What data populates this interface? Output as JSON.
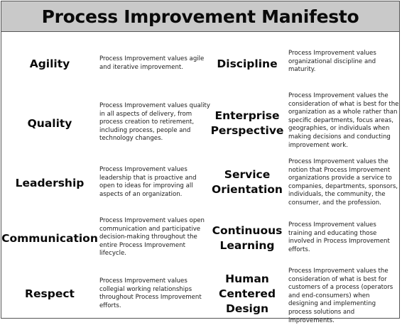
{
  "title": "Process Improvement Manifesto",
  "left": [
    {
      "label": "Agility",
      "desc": "Process Improvement values agile and iterative improvement."
    },
    {
      "label": "Quality",
      "desc": "Process Improvement values quality in all aspects of delivery, from process creation to retirement, including process, people and technology changes."
    },
    {
      "label": "Leadership",
      "desc": "Process Improvement values leadership that is proactive and open to ideas for improving all aspects of an organization."
    },
    {
      "label": "Communication",
      "desc": "Process Improvement values open communication and participative decision-making throughout the entire Process Improvement lifecycle."
    },
    {
      "label": "Respect",
      "desc": "Process Improvement values collegial working relationships throughout Process Improvement efforts."
    }
  ],
  "right": [
    {
      "label": "Discipline",
      "desc": "Process Improvement values organizational discipline and maturity."
    },
    {
      "label": "Enterprise\nPerspective",
      "desc": "Process Improvement values the consideration of what is best for the organization as a whole rather than specific departments, focus areas, geographies, or individuals when making decisions and conducting improvement work."
    },
    {
      "label": "Service\nOrientation",
      "desc": "Process Improvement values the notion that Process Improvement organizations provide a service to companies, departments, sponsors, individuals, the community, the consumer, and the profession."
    },
    {
      "label": "Continuous\nLearning",
      "desc": "Process Improvement values training and educating those involved in Process Improvement efforts."
    },
    {
      "label": "Human\nCentered\nDesign",
      "desc": "Process Improvement values the consideration of what is best for customers of a process (operators and end-consumers) when designing and implementing process solutions and improvements."
    }
  ]
}
